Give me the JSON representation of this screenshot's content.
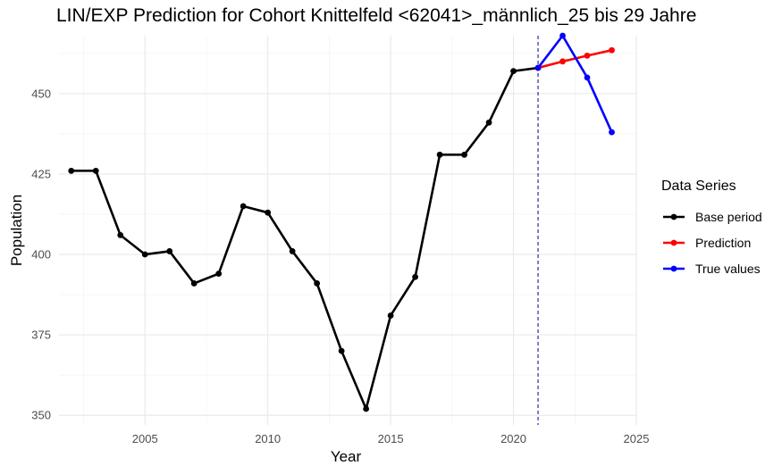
{
  "chart_data": {
    "type": "line",
    "title": "LIN/EXP Prediction for Cohort Knittelfeld <62041>_männlich_25 bis 29 Jahre",
    "xlabel": "Year",
    "ylabel": "Population",
    "xlim": [
      2001.5,
      2025.0
    ],
    "ylim": [
      347,
      468
    ],
    "x_ticks": [
      2005,
      2010,
      2015,
      2020,
      2025
    ],
    "y_ticks": [
      350,
      375,
      400,
      425,
      450
    ],
    "grid": true,
    "legend_title": "Data Series",
    "legend_position": "right",
    "vline": {
      "x": 2021,
      "style": "dashed",
      "color": "#00008b"
    },
    "series": [
      {
        "name": "Base period",
        "color": "#000000",
        "x": [
          2002,
          2003,
          2004,
          2005,
          2006,
          2007,
          2008,
          2009,
          2010,
          2011,
          2012,
          2013,
          2014,
          2015,
          2016,
          2017,
          2018,
          2019,
          2020,
          2021
        ],
        "y": [
          426,
          426,
          406,
          400,
          401,
          391,
          394,
          415,
          413,
          401,
          391,
          370,
          352,
          381,
          393,
          431,
          431,
          441,
          457,
          458
        ]
      },
      {
        "name": "Prediction",
        "color": "#ff0000",
        "x": [
          2021,
          2022,
          2023,
          2024
        ],
        "y": [
          458,
          460,
          461.8,
          463.5
        ]
      },
      {
        "name": "True values",
        "color": "#0000ff",
        "x": [
          2021,
          2022,
          2023,
          2024
        ],
        "y": [
          458,
          468,
          455,
          438
        ]
      }
    ]
  }
}
